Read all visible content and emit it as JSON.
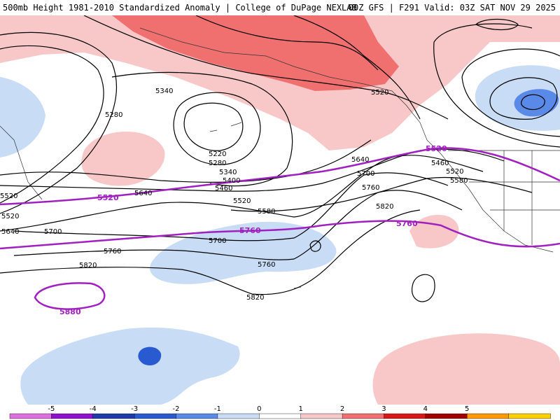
{
  "header": {
    "title_left": "500mb Height 1981-2010 Standardized Anomaly | College of DuPage NEXLAB",
    "title_right": "00Z GFS | F291 Valid: 03Z SAT NOV 29 2025"
  },
  "contour_labels": [
    "5340",
    "5280",
    "5220",
    "5280",
    "5340",
    "5400",
    "5460",
    "5520",
    "5580",
    "5640",
    "5700",
    "5760",
    "5820",
    "5520",
    "5640",
    "5700",
    "5760",
    "5820",
    "5520",
    "5460",
    "5520",
    "5580",
    "5520",
    "5640",
    "5700",
    "5760",
    "5820"
  ],
  "highlight_labels": [
    "5520",
    "5520",
    "5760",
    "5760",
    "5880"
  ],
  "colorbar": {
    "ticks": [
      "-5",
      "-4",
      "-3",
      "-2",
      "-1",
      "0",
      "1",
      "2",
      "3",
      "4",
      "5"
    ],
    "colors": [
      "#e070e0",
      "#9010d0",
      "#1c3aa8",
      "#2a5ad0",
      "#5a8ae8",
      "#c8dcf6",
      "#ffffff",
      "#f8c8c8",
      "#f07070",
      "#d81818",
      "#a00000",
      "#ff9a00",
      "#ffd000"
    ]
  }
}
